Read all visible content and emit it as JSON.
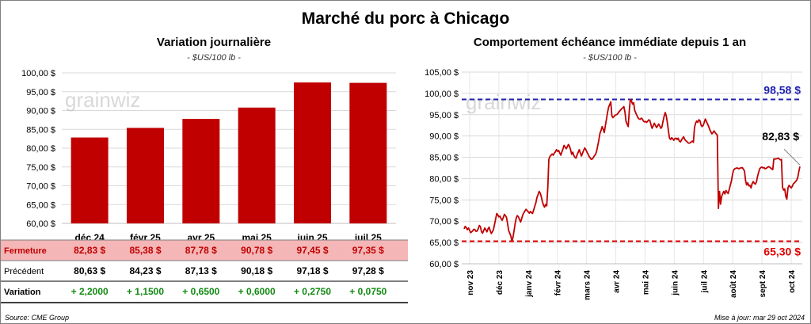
{
  "title": "Marché du porc à Chicago",
  "left_panel": {
    "title": "Variation journalière",
    "unit": "- $US/100 lb -"
  },
  "right_panel": {
    "title": "Comportement échéance immédiate depuis 1 an",
    "unit": "- $US/100 lb -"
  },
  "table": {
    "rows": [
      {
        "label": "Fermeture",
        "cells": [
          "82,83  $",
          "85,38  $",
          "87,78  $",
          "90,78  $",
          "97,45  $",
          "97,35  $"
        ]
      },
      {
        "label": "Précédent",
        "cells": [
          "80,63  $",
          "84,23  $",
          "87,13  $",
          "90,18  $",
          "97,18  $",
          "97,28  $"
        ]
      },
      {
        "label": "Variation",
        "cells": [
          "+ 2,2000",
          "+ 1,1500",
          "+ 0,6500",
          "+ 0,6000",
          "+ 0,2750",
          "+ 0,0750"
        ]
      }
    ]
  },
  "footer": {
    "source": "Source: CME Group",
    "updated": "Mise à jour: mar 29 oct 2024"
  },
  "colors": {
    "bar": "#c00000",
    "line": "#c00000",
    "max_line": "#2020b0",
    "min_line": "#e00000",
    "close_row": "#f4b6b6",
    "variation_text": "#118a11"
  },
  "chart_data": [
    {
      "type": "bar",
      "title": "Variation journalière",
      "subtitle": "- $US/100 lb -",
      "categories": [
        "déc 24",
        "févr 25",
        "avr 25",
        "mai 25",
        "juin 25",
        "juil 25"
      ],
      "values": [
        82.83,
        85.38,
        87.78,
        90.78,
        97.45,
        97.35
      ],
      "ylim": [
        60,
        100
      ],
      "yticks": [
        "60,00 $",
        "65,00 $",
        "70,00 $",
        "75,00 $",
        "80,00 $",
        "85,00 $",
        "90,00 $",
        "95,00 $",
        "100,00 $"
      ],
      "grid": true
    },
    {
      "type": "line",
      "title": "Comportement échéance immédiate depuis 1 an",
      "subtitle": "- $US/100 lb -",
      "xticks": [
        "nov 23",
        "déc 23",
        "janv 24",
        "févr 24",
        "mars 24",
        "avr 24",
        "mai 24",
        "juin 24",
        "juil 24",
        "août 24",
        "sept 24",
        "oct 24"
      ],
      "ylim": [
        60,
        105
      ],
      "yticks": [
        "60,00 $",
        "65,00 $",
        "70,00 $",
        "75,00 $",
        "80,00 $",
        "85,00 $",
        "90,00 $",
        "95,00 $",
        "100,00 $",
        "105,00 $"
      ],
      "grid": true,
      "annotations": {
        "max": 98.58,
        "max_label": "98,58 $",
        "min": 65.3,
        "min_label": "65,30 $",
        "last": 82.83,
        "last_label": "82,83 $"
      },
      "series": [
        {
          "values": [
            68.2,
            68.8,
            68.5,
            68.0,
            68.4,
            67.9,
            67.3,
            67.5,
            67.8,
            68.1,
            68.0,
            67.6,
            67.7,
            68.2,
            69.0,
            68.7,
            67.5,
            67.2,
            67.8,
            68.4,
            68.0,
            67.5,
            68.2,
            68.6,
            67.8,
            67.1,
            67.5,
            68.0,
            69.2,
            70.5,
            71.8,
            71.5,
            71.0,
            71.2,
            70.6,
            70.2,
            70.8,
            71.6,
            71.3,
            70.9,
            69.4,
            67.8,
            67.2,
            66.5,
            65.3,
            66.2,
            67.8,
            69.5,
            70.8,
            71.3,
            71.0,
            70.4,
            69.8,
            70.6,
            71.5,
            72.0,
            72.4,
            72.8,
            72.5,
            72.2,
            71.9,
            72.3,
            72.0,
            71.8,
            72.6,
            73.5,
            74.3,
            75.5,
            76.2,
            77.0,
            76.6,
            75.8,
            74.6,
            73.8,
            73.3,
            73.9,
            73.6,
            78.0,
            84.5,
            85.2,
            85.5,
            85.8,
            85.5,
            86.0,
            86.3,
            86.8,
            86.4,
            86.6,
            86.0,
            85.5,
            86.3,
            87.0,
            87.8,
            87.4,
            87.0,
            87.5,
            88.0,
            87.6,
            86.7,
            85.7,
            86.2,
            85.4,
            85.0,
            84.8,
            85.6,
            86.2,
            86.8,
            86.0,
            85.3,
            86.0,
            86.6,
            87.2,
            86.8,
            86.2,
            85.8,
            85.2,
            84.9,
            84.5,
            84.6,
            85.0,
            85.4,
            85.7,
            86.5,
            87.8,
            89.0,
            90.6,
            91.3,
            92.2,
            91.6,
            90.8,
            92.5,
            94.0,
            95.5,
            96.8,
            97.4,
            98.0,
            94.7,
            94.3,
            94.6,
            94.9,
            95.0,
            95.1,
            95.5,
            95.8,
            96.1,
            96.4,
            96.6,
            96.9,
            95.6,
            93.4,
            92.8,
            92.2,
            96.0,
            98.6,
            98.2,
            97.5,
            97.8,
            96.0,
            95.4,
            94.8,
            94.3,
            94.0,
            93.9,
            94.2,
            94.0,
            93.5,
            93.3,
            93.4,
            93.2,
            93.5,
            93.8,
            93.6,
            92.6,
            91.8,
            92.4,
            93.0,
            92.5,
            92.0,
            92.3,
            92.8,
            92.4,
            91.8,
            92.1,
            93.4,
            94.6,
            95.5,
            94.8,
            93.2,
            91.2,
            89.5,
            89.2,
            89.6,
            89.3,
            89.0,
            89.4,
            89.5,
            89.2,
            89.5,
            88.8,
            88.6,
            89.0,
            89.5,
            89.8,
            89.2,
            88.9,
            88.7,
            88.4,
            88.3,
            88.4,
            88.6,
            88.8,
            88.5,
            92.0,
            93.0,
            93.5,
            93.2,
            93.8,
            93.6,
            92.6,
            92.2,
            92.5,
            93.2,
            94.0,
            93.4,
            92.8,
            92.3,
            91.5,
            91.0,
            90.5,
            90.8,
            91.2,
            90.8,
            90.5,
            90.2,
            73.0,
            77.0,
            74.0,
            75.8,
            76.5,
            77.0,
            76.4,
            77.2,
            76.8,
            76.5,
            77.5,
            78.5,
            79.5,
            81.0,
            82.0,
            82.3,
            82.4,
            82.5,
            82.4,
            82.3,
            82.5,
            82.5,
            82.6,
            82.2,
            81.8,
            79.5,
            78.5,
            79.0,
            78.3,
            78.4,
            77.8,
            78.8,
            79.3,
            78.9,
            78.7,
            79.2,
            80.5,
            81.5,
            82.3,
            82.6,
            82.7,
            82.5,
            82.6,
            82.3,
            82.4,
            82.6,
            82.8,
            82.7,
            82.5,
            82.3,
            82.1,
            84.6,
            84.6,
            84.6,
            84.7,
            84.8,
            84.6,
            84.4,
            84.5,
            78.0,
            77.3,
            77.6,
            75.8,
            75.2,
            77.8,
            78.4,
            78.1,
            77.8,
            78.2,
            78.8,
            79.0,
            79.3,
            79.6,
            80.3,
            81.6,
            82.83
          ]
        }
      ]
    }
  ]
}
